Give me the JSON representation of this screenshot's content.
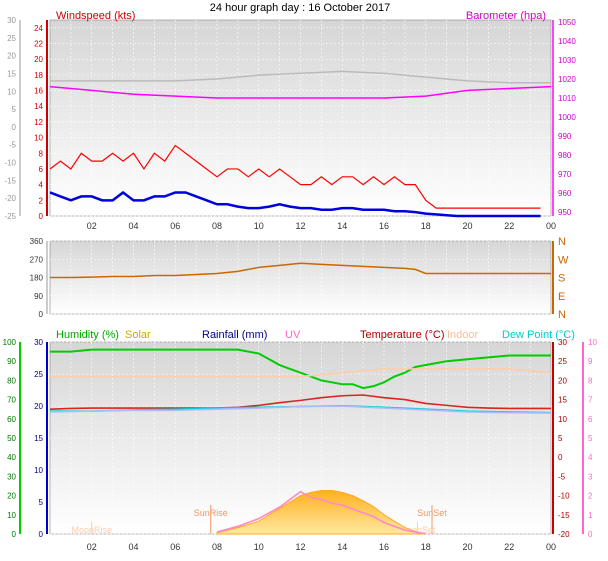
{
  "title": "24 hour graph day : 16 October 2017",
  "x_ticks": [
    "02",
    "04",
    "06",
    "08",
    "10",
    "12",
    "14",
    "16",
    "18",
    "20",
    "22",
    "00"
  ],
  "chart_data": [
    {
      "type": "line",
      "name": "wind-barometer",
      "left_axis_label": "Windspeed (kts)",
      "right_axis_label": "Barometer (hpa)",
      "left_ticks": [
        0,
        2,
        4,
        6,
        8,
        10,
        12,
        14,
        16,
        18,
        20,
        22,
        24
      ],
      "left_ylim": [
        0,
        25
      ],
      "outer_left_ticks": [
        -25,
        -20,
        -15,
        -10,
        -5,
        0,
        5,
        10,
        15,
        20,
        25,
        30
      ],
      "outer_left_ylim": [
        -25,
        30
      ],
      "right_ticks": [
        950,
        960,
        970,
        980,
        990,
        1000,
        1010,
        1020,
        1030,
        1040,
        1050
      ],
      "right_ylim": [
        948,
        1051
      ],
      "series": [
        {
          "name": "gust",
          "color": "#ff0000",
          "x": [
            0,
            0.5,
            1,
            1.5,
            2,
            2.5,
            3,
            3.5,
            4,
            4.5,
            5,
            5.5,
            6,
            6.5,
            7,
            7.5,
            8,
            8.5,
            9,
            9.5,
            10,
            10.5,
            11,
            11.5,
            12,
            12.5,
            13,
            13.5,
            14,
            14.5,
            15,
            15.5,
            16,
            16.5,
            17,
            17.5,
            18,
            18.5,
            19,
            19.5,
            20,
            20.5,
            21,
            21.5,
            22,
            22.5,
            23,
            23.5
          ],
          "values": [
            6,
            7,
            6,
            8,
            7,
            7,
            8,
            7,
            8,
            6,
            8,
            7,
            9,
            8,
            7,
            6,
            5,
            6,
            6,
            5,
            6,
            5,
            6,
            5,
            4,
            4,
            5,
            4,
            5,
            5,
            4,
            5,
            4,
            5,
            4,
            4,
            2,
            1,
            1,
            1,
            1,
            1,
            1,
            1,
            1,
            1,
            1,
            1
          ]
        },
        {
          "name": "mean",
          "color": "#0000dd",
          "x": [
            0,
            0.5,
            1,
            1.5,
            2,
            2.5,
            3,
            3.5,
            4,
            4.5,
            5,
            5.5,
            6,
            6.5,
            7,
            7.5,
            8,
            8.5,
            9,
            9.5,
            10,
            10.5,
            11,
            11.5,
            12,
            12.5,
            13,
            13.5,
            14,
            14.5,
            15,
            15.5,
            16,
            16.5,
            17,
            17.5,
            18,
            18.5,
            19,
            19.5,
            20,
            20.5,
            21,
            21.5,
            22,
            22.5,
            23,
            23.5
          ],
          "values": [
            3,
            2.5,
            2,
            2.5,
            2.5,
            2,
            2,
            3,
            2,
            2,
            2.5,
            2.5,
            3,
            3,
            2.5,
            2,
            1.5,
            1.5,
            1.2,
            1,
            1,
            1.2,
            1.5,
            1.2,
            1,
            1,
            0.8,
            0.8,
            1,
            1,
            0.8,
            0.8,
            0.8,
            0.6,
            0.6,
            0.5,
            0.3,
            0.2,
            0.1,
            0,
            0,
            0,
            0,
            0,
            0,
            0,
            0,
            0
          ]
        },
        {
          "name": "barometer",
          "color": "#ff00ff",
          "x": [
            0,
            2,
            4,
            6,
            8,
            10,
            12,
            14,
            16,
            18,
            20,
            22,
            24
          ],
          "values": [
            1016,
            1014,
            1012,
            1011,
            1010,
            1010,
            1010,
            1010,
            1010,
            1011,
            1014,
            1015,
            1016
          ]
        },
        {
          "name": "indoor-pressure",
          "color": "#bbbbbb",
          "x": [
            0,
            2,
            4,
            6,
            8,
            10,
            12,
            14,
            16,
            18,
            20,
            22,
            24
          ],
          "values": [
            1019,
            1019,
            1019,
            1019,
            1020,
            1022,
            1023,
            1024,
            1023,
            1021,
            1019,
            1018,
            1018
          ]
        }
      ]
    },
    {
      "type": "scatter",
      "name": "wind-direction",
      "left_ticks": [
        0,
        90,
        180,
        270,
        360
      ],
      "ylim": [
        0,
        360
      ],
      "right_labels": [
        "N",
        "W",
        "S",
        "E",
        "N"
      ],
      "series": [
        {
          "name": "direction",
          "color": "#cc6600",
          "x": [
            0,
            1,
            2,
            3,
            4,
            5,
            6,
            7,
            8,
            9,
            10,
            11,
            12,
            13,
            14,
            15,
            16,
            17,
            17.5,
            18,
            20,
            22,
            24
          ],
          "values": [
            180,
            180,
            182,
            185,
            185,
            190,
            190,
            195,
            200,
            210,
            230,
            240,
            250,
            245,
            240,
            235,
            230,
            225,
            220,
            200,
            200,
            200,
            200
          ]
        }
      ]
    },
    {
      "type": "line",
      "name": "humidity-temperature",
      "labels": {
        "humidity": "Humidity (%)",
        "solar": "Solar",
        "rainfall": "Rainfall (mm)",
        "uv": "UV",
        "temperature": "Temperature (°C)",
        "indoor": "Indoor",
        "dewpoint": "Dew Point (°C)"
      },
      "label_colors": {
        "humidity": "#00aa00",
        "solar": "#ccaa00",
        "rainfall": "#000088",
        "uv": "#ff66cc",
        "temperature": "#aa0000",
        "indoor": "#ffccaa",
        "dewpoint": "#00cccc"
      },
      "humidity_ticks": [
        0,
        10,
        20,
        30,
        40,
        50,
        60,
        70,
        80,
        90,
        100
      ],
      "humidity_ylim": [
        0,
        100
      ],
      "rain_ticks": [
        0,
        5,
        10,
        15,
        20,
        25,
        30
      ],
      "rain_ylim": [
        0,
        30
      ],
      "temp_ticks": [
        -20,
        -15,
        -10,
        -5,
        0,
        5,
        10,
        15,
        20,
        25,
        30
      ],
      "temp_ylim": [
        -20,
        30
      ],
      "uv_ticks": [
        0,
        1,
        2,
        3,
        4,
        5,
        6,
        7,
        8,
        9,
        10
      ],
      "uv_ylim": [
        0,
        10
      ],
      "annotations": [
        {
          "text": "SunRise",
          "x": 7.7,
          "type": "sunrise"
        },
        {
          "text": "SunSet",
          "x": 18.3,
          "type": "sunset"
        },
        {
          "text": "MoonRise",
          "x": 2,
          "type": "moonrise"
        },
        {
          "text": "MoonSet",
          "x": 17.6,
          "type": "moonset"
        }
      ],
      "series": [
        {
          "name": "humidity",
          "color": "#00cc00",
          "axis": "humidity",
          "x": [
            0,
            1,
            2,
            3,
            4,
            5,
            6,
            7,
            8,
            9,
            10,
            10.5,
            11,
            11.5,
            12,
            12.5,
            13,
            13.5,
            14,
            14.5,
            15,
            15.5,
            16,
            16.5,
            17,
            17.5,
            18,
            18.5,
            19,
            20,
            21,
            22,
            23,
            24
          ],
          "values": [
            95,
            95,
            96,
            96,
            96,
            96,
            96,
            96,
            96,
            96,
            94,
            91,
            88,
            86,
            84,
            82,
            80,
            79,
            78,
            78,
            76,
            77,
            79,
            82,
            84,
            87,
            88,
            89,
            90,
            91,
            92,
            93,
            93,
            93
          ]
        },
        {
          "name": "indoor",
          "color": "#ffccaa",
          "axis": "temp",
          "x": [
            0,
            2,
            4,
            6,
            8,
            10,
            12,
            14,
            16,
            18,
            20,
            22,
            24
          ],
          "values": [
            21,
            21,
            21,
            21,
            21,
            21,
            21,
            22,
            23,
            23,
            23,
            23,
            22
          ]
        },
        {
          "name": "temperature",
          "color": "#dd2222",
          "axis": "temp",
          "x": [
            0,
            1,
            2,
            3,
            4,
            5,
            6,
            7,
            8,
            9,
            10,
            11,
            12,
            13,
            14,
            15,
            16,
            17,
            18,
            19,
            20,
            21,
            22,
            23,
            24
          ],
          "values": [
            12.5,
            12.7,
            12.8,
            12.8,
            12.8,
            12.8,
            12.8,
            12.8,
            12.8,
            13,
            13.5,
            14.2,
            14.8,
            15.5,
            16,
            16.2,
            15.5,
            15,
            14,
            13.5,
            13,
            12.8,
            12.7,
            12.7,
            12.7
          ]
        },
        {
          "name": "dewpoint",
          "color": "#00cccc",
          "axis": "temp",
          "x": [
            0,
            2,
            4,
            6,
            8,
            10,
            12,
            14,
            16,
            18,
            20,
            22,
            24
          ],
          "values": [
            12,
            12,
            12.3,
            12.5,
            12.8,
            13,
            13.2,
            13.4,
            13,
            12.5,
            12,
            11.8,
            11.6
          ]
        },
        {
          "name": "indoor-low",
          "color": "#aabbff",
          "axis": "temp",
          "x": [
            0,
            2,
            4,
            6,
            8,
            10,
            12,
            14,
            16,
            18,
            20,
            22,
            24
          ],
          "values": [
            11.8,
            12,
            12.2,
            12.2,
            12.5,
            12.8,
            13.2,
            13.3,
            12.8,
            12.3,
            11.8,
            11.6,
            11.5
          ]
        },
        {
          "name": "solar",
          "color": "#ffbb33",
          "axis": "rain",
          "x": [
            8,
            9,
            10,
            11,
            11.5,
            12,
            12.5,
            13,
            13.5,
            14,
            14.5,
            15,
            15.5,
            16,
            16.5,
            17,
            17.5,
            18
          ],
          "values": [
            0.2,
            1,
            2,
            4,
            5,
            6,
            6.5,
            6.8,
            6.8,
            6.5,
            6,
            5.2,
            4.3,
            3,
            2,
            1,
            0.4,
            0
          ]
        },
        {
          "name": "uv",
          "color": "#ff88cc",
          "axis": "uv",
          "x": [
            8,
            9,
            10,
            11,
            11.5,
            12,
            12.5,
            13,
            13.5,
            14,
            14.5,
            15,
            15.5,
            16,
            16.5,
            17,
            17.5,
            18
          ],
          "values": [
            0.1,
            0.4,
            0.8,
            1.4,
            1.8,
            2.2,
            1.9,
            1.8,
            1.6,
            1.5,
            1.3,
            1.1,
            0.9,
            0.6,
            0.4,
            0.2,
            0.1,
            0
          ]
        }
      ]
    }
  ]
}
